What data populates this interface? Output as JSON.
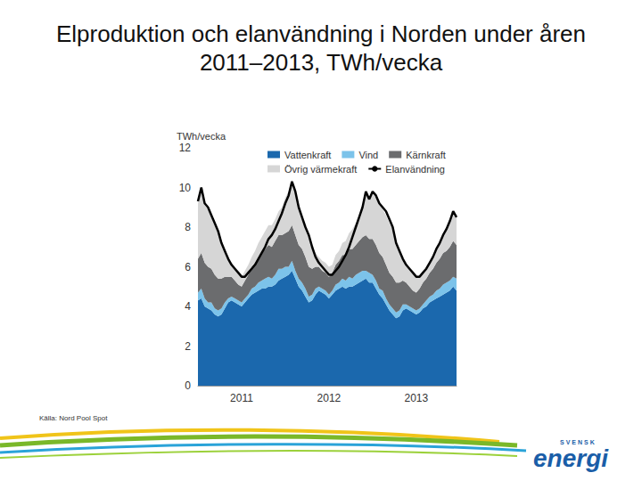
{
  "chart_data": {
    "type": "line",
    "title": "Elproduktion och elanvändning i Norden under åren 2011–2013, TWh/vecka",
    "y_label": "TWh/vecka",
    "annotations": [
      "Källa: Nord Pool Spot",
      "SVENSK",
      "energi"
    ],
    "categories": [
      null,
      null,
      null,
      null,
      null,
      null,
      null,
      null,
      null,
      null,
      null,
      null,
      null,
      "2011",
      null,
      null,
      null,
      null,
      null,
      null,
      null,
      null,
      null,
      null,
      null,
      null,
      null,
      null,
      null,
      null,
      null,
      null,
      null,
      null,
      null,
      null,
      null,
      null,
      null,
      "2012",
      null,
      null,
      null,
      null,
      null,
      null,
      null,
      null,
      null,
      null,
      null,
      null,
      null,
      null,
      null,
      null,
      null,
      null,
      null,
      null,
      null,
      null,
      null,
      null,
      null,
      "2013",
      null,
      null,
      null,
      null,
      null,
      null,
      null,
      null,
      null,
      null,
      null,
      null
    ],
    "ylim": [
      0,
      12
    ],
    "yticks": [
      0,
      2,
      4,
      6,
      8,
      10,
      12
    ],
    "grid": false,
    "legend": "top",
    "stacked": true,
    "series": [
      {
        "name": "Vattenkraft",
        "type": "area",
        "color": "#1b68ad",
        "values": [
          4.3,
          4.4,
          4.0,
          3.9,
          3.8,
          3.6,
          3.5,
          3.6,
          3.9,
          4.2,
          4.3,
          4.2,
          4.1,
          4.0,
          4.2,
          4.4,
          4.6,
          4.7,
          4.8,
          4.9,
          4.9,
          5.0,
          5.0,
          5.1,
          5.3,
          5.4,
          5.5,
          5.6,
          5.8,
          5.4,
          5.0,
          4.8,
          4.5,
          4.2,
          4.3,
          4.6,
          4.8,
          4.7,
          4.6,
          4.4,
          4.6,
          4.8,
          4.9,
          5.0,
          4.9,
          5.0,
          5.0,
          5.1,
          5.2,
          5.3,
          5.4,
          5.2,
          5.2,
          4.9,
          4.6,
          4.4,
          4.1,
          3.8,
          3.6,
          3.4,
          3.5,
          3.8,
          3.9,
          3.8,
          3.7,
          3.6,
          3.7,
          3.9,
          4.0,
          4.2,
          4.3,
          4.4,
          4.5,
          4.6,
          4.7,
          4.8,
          5.0,
          4.8
        ]
      },
      {
        "name": "Vind",
        "type": "area",
        "color": "#7cc3ea",
        "values": [
          0.4,
          0.5,
          0.4,
          0.3,
          0.4,
          0.3,
          0.3,
          0.3,
          0.3,
          0.2,
          0.2,
          0.2,
          0.2,
          0.2,
          0.2,
          0.2,
          0.3,
          0.3,
          0.4,
          0.4,
          0.5,
          0.5,
          0.4,
          0.5,
          0.6,
          0.5,
          0.5,
          0.4,
          0.5,
          0.4,
          0.4,
          0.4,
          0.4,
          0.3,
          0.3,
          0.3,
          0.2,
          0.2,
          0.2,
          0.2,
          0.2,
          0.3,
          0.3,
          0.4,
          0.4,
          0.5,
          0.4,
          0.5,
          0.5,
          0.5,
          0.4,
          0.5,
          0.4,
          0.4,
          0.3,
          0.4,
          0.3,
          0.3,
          0.3,
          0.3,
          0.3,
          0.3,
          0.2,
          0.2,
          0.2,
          0.2,
          0.2,
          0.2,
          0.3,
          0.3,
          0.3,
          0.4,
          0.4,
          0.5,
          0.5,
          0.5,
          0.5,
          0.6
        ]
      },
      {
        "name": "Kärnkraft",
        "type": "area",
        "color": "#6b6c6e",
        "values": [
          1.7,
          1.8,
          1.8,
          1.8,
          1.7,
          1.7,
          1.6,
          1.5,
          1.3,
          1.1,
          1.0,
          0.9,
          0.8,
          0.8,
          0.9,
          1.0,
          1.1,
          1.2,
          1.3,
          1.4,
          1.5,
          1.6,
          1.6,
          1.7,
          1.7,
          1.7,
          1.7,
          1.8,
          1.8,
          1.8,
          1.7,
          1.7,
          1.6,
          1.5,
          1.3,
          1.1,
          1.0,
          0.9,
          0.9,
          0.9,
          0.9,
          1.0,
          1.1,
          1.2,
          1.3,
          1.4,
          1.5,
          1.5,
          1.6,
          1.7,
          1.8,
          1.7,
          1.8,
          1.8,
          1.8,
          1.7,
          1.7,
          1.6,
          1.6,
          1.5,
          1.4,
          1.2,
          1.1,
          1.0,
          0.9,
          0.9,
          1.0,
          1.1,
          1.1,
          1.2,
          1.3,
          1.4,
          1.5,
          1.6,
          1.6,
          1.7,
          1.8,
          1.7
        ]
      },
      {
        "name": "Övrig värmekraft",
        "type": "area",
        "color": "#d6d6d6",
        "values": [
          2.8,
          3.1,
          2.9,
          2.9,
          2.6,
          2.5,
          2.3,
          1.8,
          1.3,
          0.9,
          0.7,
          0.7,
          0.6,
          0.5,
          0.5,
          0.5,
          0.5,
          0.6,
          0.7,
          0.8,
          0.9,
          1.0,
          1.1,
          1.1,
          1.2,
          1.4,
          1.8,
          2.0,
          2.3,
          2.2,
          1.9,
          1.6,
          1.4,
          1.4,
          1.1,
          0.7,
          0.5,
          0.5,
          0.5,
          0.5,
          0.4,
          0.5,
          0.5,
          0.6,
          0.7,
          0.8,
          1.0,
          1.1,
          1.3,
          1.5,
          2.1,
          1.9,
          2.3,
          2.4,
          2.5,
          2.4,
          2.5,
          2.5,
          2.4,
          2.0,
          1.6,
          1.1,
          0.9,
          0.9,
          0.9,
          0.8,
          0.7,
          0.6,
          0.6,
          0.6,
          0.7,
          0.8,
          0.9,
          1.0,
          1.1,
          1.3,
          1.5,
          1.4
        ]
      },
      {
        "name": "Elanvändning",
        "type": "line",
        "color": "#000000",
        "line_style": "solid",
        "values": [
          9.3,
          10.0,
          9.2,
          9.0,
          8.6,
          8.2,
          7.8,
          7.2,
          6.8,
          6.4,
          6.1,
          5.9,
          5.7,
          5.5,
          5.5,
          5.7,
          5.9,
          6.1,
          6.4,
          6.7,
          7.0,
          7.4,
          7.6,
          7.9,
          8.3,
          8.7,
          9.2,
          9.6,
          10.3,
          9.8,
          9.0,
          8.5,
          8.0,
          7.6,
          7.0,
          6.5,
          6.2,
          6.0,
          5.8,
          5.6,
          5.6,
          5.8,
          6.0,
          6.3,
          6.6,
          7.0,
          7.5,
          8.0,
          8.5,
          9.0,
          9.8,
          9.4,
          9.8,
          9.6,
          9.2,
          9.0,
          8.8,
          8.4,
          8.0,
          7.2,
          6.8,
          6.4,
          6.1,
          5.9,
          5.7,
          5.5,
          5.5,
          5.7,
          5.9,
          6.2,
          6.5,
          6.9,
          7.2,
          7.6,
          7.9,
          8.3,
          8.8,
          8.5
        ]
      }
    ]
  }
}
